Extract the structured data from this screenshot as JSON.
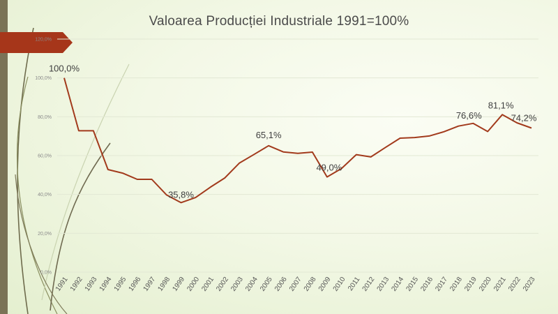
{
  "chart_data": {
    "type": "line",
    "title": "Valoarea Producției Industriale 1991=100%",
    "xlabel": "",
    "ylabel": "",
    "x": [
      "1991",
      "1992",
      "1993",
      "1994",
      "1995",
      "1996",
      "1997",
      "1998",
      "1999",
      "2000",
      "2001",
      "2002",
      "2003",
      "2004",
      "2005",
      "2006",
      "2007",
      "2008",
      "2009",
      "2010",
      "2011",
      "2012",
      "2013",
      "2014",
      "2015",
      "2016",
      "2017",
      "2018",
      "2019",
      "2020",
      "2021",
      "2022",
      "2023"
    ],
    "series": [
      {
        "values": [
          100.0,
          72.8,
          72.8,
          52.8,
          51.0,
          47.8,
          47.8,
          39.8,
          35.8,
          38.4,
          43.7,
          48.5,
          56.2,
          60.6,
          65.1,
          61.9,
          61.2,
          61.8,
          49.0,
          53.4,
          60.5,
          59.3,
          64.2,
          69.0,
          69.3,
          70.1,
          72.3,
          75.2,
          76.6,
          72.4,
          81.1,
          76.9,
          74.2
        ],
        "color": "#a23a1c"
      }
    ],
    "data_labels": [
      {
        "year": "1991",
        "text": "100,0%"
      },
      {
        "year": "1999",
        "text": "35,8%"
      },
      {
        "year": "2005",
        "text": "65,1%"
      },
      {
        "year": "2009",
        "text": "49,0%"
      },
      {
        "year": "2019",
        "text": "76,6%"
      },
      {
        "year": "2021",
        "text": "81,1%"
      },
      {
        "year": "2023",
        "text": "74,2%"
      }
    ],
    "yticks": [
      {
        "value": 0,
        "label": "0,0%"
      },
      {
        "value": 20,
        "label": "20,0%"
      },
      {
        "value": 40,
        "label": "40,0%"
      },
      {
        "value": 60,
        "label": "60,0%"
      },
      {
        "value": 80,
        "label": "80,0%"
      },
      {
        "value": 100,
        "label": "100,0%"
      },
      {
        "value": 120,
        "label": "120,0%"
      }
    ],
    "ylim": [
      0,
      120
    ],
    "grid": true,
    "legend": "none"
  },
  "theme": {
    "accent": "#a23a1c",
    "sidebar": "#7a7356",
    "grid": "#e2e8d4"
  }
}
